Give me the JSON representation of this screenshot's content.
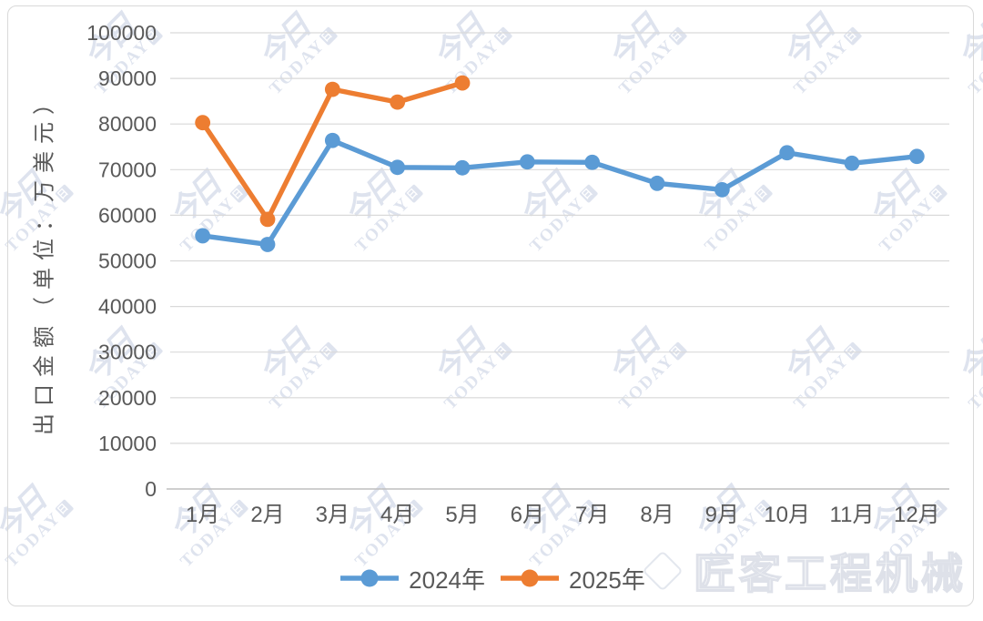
{
  "chart_data": {
    "type": "line",
    "categories": [
      "1月",
      "2月",
      "3月",
      "4月",
      "5月",
      "6月",
      "7月",
      "8月",
      "9月",
      "10月",
      "11月",
      "12月"
    ],
    "series": [
      {
        "name": "2024年",
        "color": "#5B9BD5",
        "values": [
          55500,
          53600,
          76400,
          70500,
          70400,
          71700,
          71600,
          67000,
          65600,
          73700,
          71400,
          72900
        ]
      },
      {
        "name": "2025年",
        "color": "#ED7D31",
        "values": [
          80300,
          59100,
          87600,
          84800,
          89000
        ]
      }
    ],
    "title": "",
    "xlabel": "",
    "ylabel": "出口金额（单位：万美元）",
    "ylim": [
      0,
      100000
    ],
    "ytick_step": 10000,
    "yticks": [
      "0",
      "10000",
      "20000",
      "30000",
      "40000",
      "50000",
      "60000",
      "70000",
      "80000",
      "90000",
      "100000"
    ],
    "grid": true,
    "legend_position": "bottom",
    "marker": "circle"
  },
  "watermarks": {
    "tile_mark": "今日",
    "tile_text": "TODAY",
    "tile_suffix": "日",
    "brand": "匠客工程机械"
  },
  "colors": {
    "background": "#ffffff",
    "grid": "#d9d9d9",
    "axis": "#bfbfbf",
    "text": "#595959",
    "watermark": "#d9dfec",
    "border": "#d9d9d9",
    "series_2024": "#5B9BD5",
    "series_2025": "#ED7D31"
  }
}
